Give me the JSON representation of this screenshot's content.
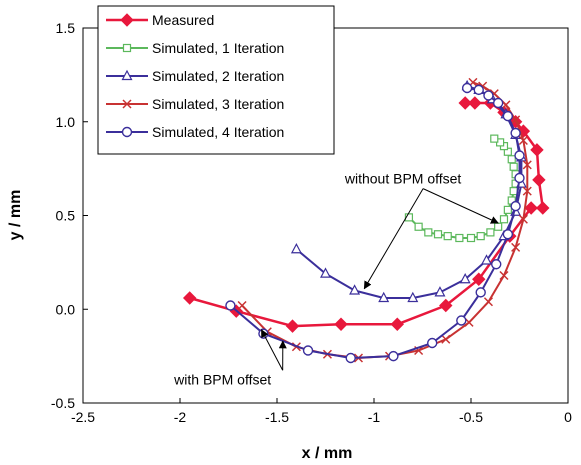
{
  "chart_data": {
    "type": "line",
    "xlabel": "x / mm",
    "ylabel": "y / mm",
    "xlim": [
      -2.5,
      0
    ],
    "ylim": [
      -0.5,
      1.5
    ],
    "x_ticks": [
      "-2.5",
      "-2",
      "-1.5",
      "-1",
      "-0.5",
      "0"
    ],
    "y_ticks": [
      "-0.5",
      "0.0",
      "0.5",
      "1.0",
      "1.5"
    ],
    "grid": false,
    "legend_position": "top-left",
    "series": [
      {
        "name": "Measured",
        "color": "#e8183c",
        "marker": "diamond",
        "points": [
          [
            -1.95,
            0.06
          ],
          [
            -1.71,
            -0.01
          ],
          [
            -1.42,
            -0.09
          ],
          [
            -1.17,
            -0.08
          ],
          [
            -0.88,
            -0.08
          ],
          [
            -0.63,
            0.02
          ],
          [
            -0.46,
            0.16
          ],
          [
            -0.3,
            0.39
          ],
          [
            -0.19,
            0.54
          ],
          [
            -0.13,
            0.54
          ],
          [
            -0.15,
            0.69
          ],
          [
            -0.16,
            0.85
          ],
          [
            -0.23,
            0.95
          ],
          [
            -0.27,
            1.0
          ],
          [
            -0.33,
            1.05
          ],
          [
            -0.4,
            1.1
          ],
          [
            -0.48,
            1.1
          ],
          [
            -0.53,
            1.1
          ]
        ]
      },
      {
        "name": "Simulated, 1 Iteration",
        "color": "#5cb85c",
        "marker": "square",
        "points": [
          [
            -0.82,
            0.49
          ],
          [
            -0.77,
            0.44
          ],
          [
            -0.72,
            0.41
          ],
          [
            -0.67,
            0.4
          ],
          [
            -0.62,
            0.39
          ],
          [
            -0.56,
            0.38
          ],
          [
            -0.5,
            0.38
          ],
          [
            -0.45,
            0.39
          ],
          [
            -0.4,
            0.41
          ],
          [
            -0.36,
            0.44
          ],
          [
            -0.33,
            0.48
          ],
          [
            -0.31,
            0.53
          ],
          [
            -0.29,
            0.58
          ],
          [
            -0.28,
            0.63
          ],
          [
            -0.27,
            0.67
          ],
          [
            -0.27,
            0.72
          ],
          [
            -0.28,
            0.76
          ],
          [
            -0.29,
            0.8
          ],
          [
            -0.31,
            0.84
          ],
          [
            -0.33,
            0.87
          ],
          [
            -0.35,
            0.89
          ],
          [
            -0.38,
            0.91
          ]
        ]
      },
      {
        "name": "Simulated, 2 Iteration",
        "color": "#3b2f9b",
        "marker": "triangle",
        "points": [
          [
            -1.4,
            0.32
          ],
          [
            -1.25,
            0.19
          ],
          [
            -1.1,
            0.1
          ],
          [
            -0.95,
            0.06
          ],
          [
            -0.8,
            0.06
          ],
          [
            -0.66,
            0.09
          ],
          [
            -0.53,
            0.16
          ],
          [
            -0.42,
            0.26
          ],
          [
            -0.33,
            0.39
          ],
          [
            -0.27,
            0.52
          ],
          [
            -0.24,
            0.67
          ],
          [
            -0.24,
            0.81
          ],
          [
            -0.27,
            0.93
          ],
          [
            -0.32,
            1.04
          ],
          [
            -0.39,
            1.12
          ],
          [
            -0.46,
            1.17
          ],
          [
            -0.52,
            1.19
          ]
        ]
      },
      {
        "name": "Simulated, 3 Iteration",
        "color": "#c83232",
        "marker": "x",
        "points": [
          [
            -1.68,
            0.02
          ],
          [
            -1.55,
            -0.12
          ],
          [
            -1.4,
            -0.2
          ],
          [
            -1.24,
            -0.24
          ],
          [
            -1.08,
            -0.26
          ],
          [
            -0.92,
            -0.25
          ],
          [
            -0.77,
            -0.22
          ],
          [
            -0.63,
            -0.16
          ],
          [
            -0.51,
            -0.07
          ],
          [
            -0.41,
            0.04
          ],
          [
            -0.33,
            0.18
          ],
          [
            -0.27,
            0.33
          ],
          [
            -0.23,
            0.48
          ],
          [
            -0.21,
            0.63
          ],
          [
            -0.21,
            0.77
          ],
          [
            -0.23,
            0.9
          ],
          [
            -0.27,
            1.01
          ],
          [
            -0.32,
            1.09
          ],
          [
            -0.38,
            1.15
          ],
          [
            -0.44,
            1.19
          ],
          [
            -0.49,
            1.21
          ]
        ]
      },
      {
        "name": "Simulated, 4 Iteration",
        "color": "#3b2f9b",
        "marker": "circle",
        "points": [
          [
            -1.74,
            0.02
          ],
          [
            -1.57,
            -0.13
          ],
          [
            -1.34,
            -0.22
          ],
          [
            -1.12,
            -0.26
          ],
          [
            -0.9,
            -0.25
          ],
          [
            -0.7,
            -0.18
          ],
          [
            -0.55,
            -0.06
          ],
          [
            -0.45,
            0.09
          ],
          [
            -0.37,
            0.24
          ],
          [
            -0.31,
            0.4
          ],
          [
            -0.27,
            0.55
          ],
          [
            -0.25,
            0.7
          ],
          [
            -0.25,
            0.82
          ],
          [
            -0.27,
            0.94
          ],
          [
            -0.31,
            1.03
          ],
          [
            -0.36,
            1.1
          ],
          [
            -0.41,
            1.14
          ],
          [
            -0.46,
            1.17
          ],
          [
            -0.52,
            1.18
          ]
        ]
      }
    ],
    "annotations": [
      {
        "text": "without BPM offset",
        "anchor": [
          -0.85,
          0.67
        ],
        "targets": [
          [
            -1.05,
            0.11
          ],
          [
            -0.36,
            0.46
          ]
        ]
      },
      {
        "text": "with BPM offset",
        "anchor": [
          -1.78,
          -0.4
        ],
        "targets": [
          [
            -1.58,
            -0.11
          ],
          [
            -1.47,
            -0.17
          ]
        ]
      }
    ]
  }
}
